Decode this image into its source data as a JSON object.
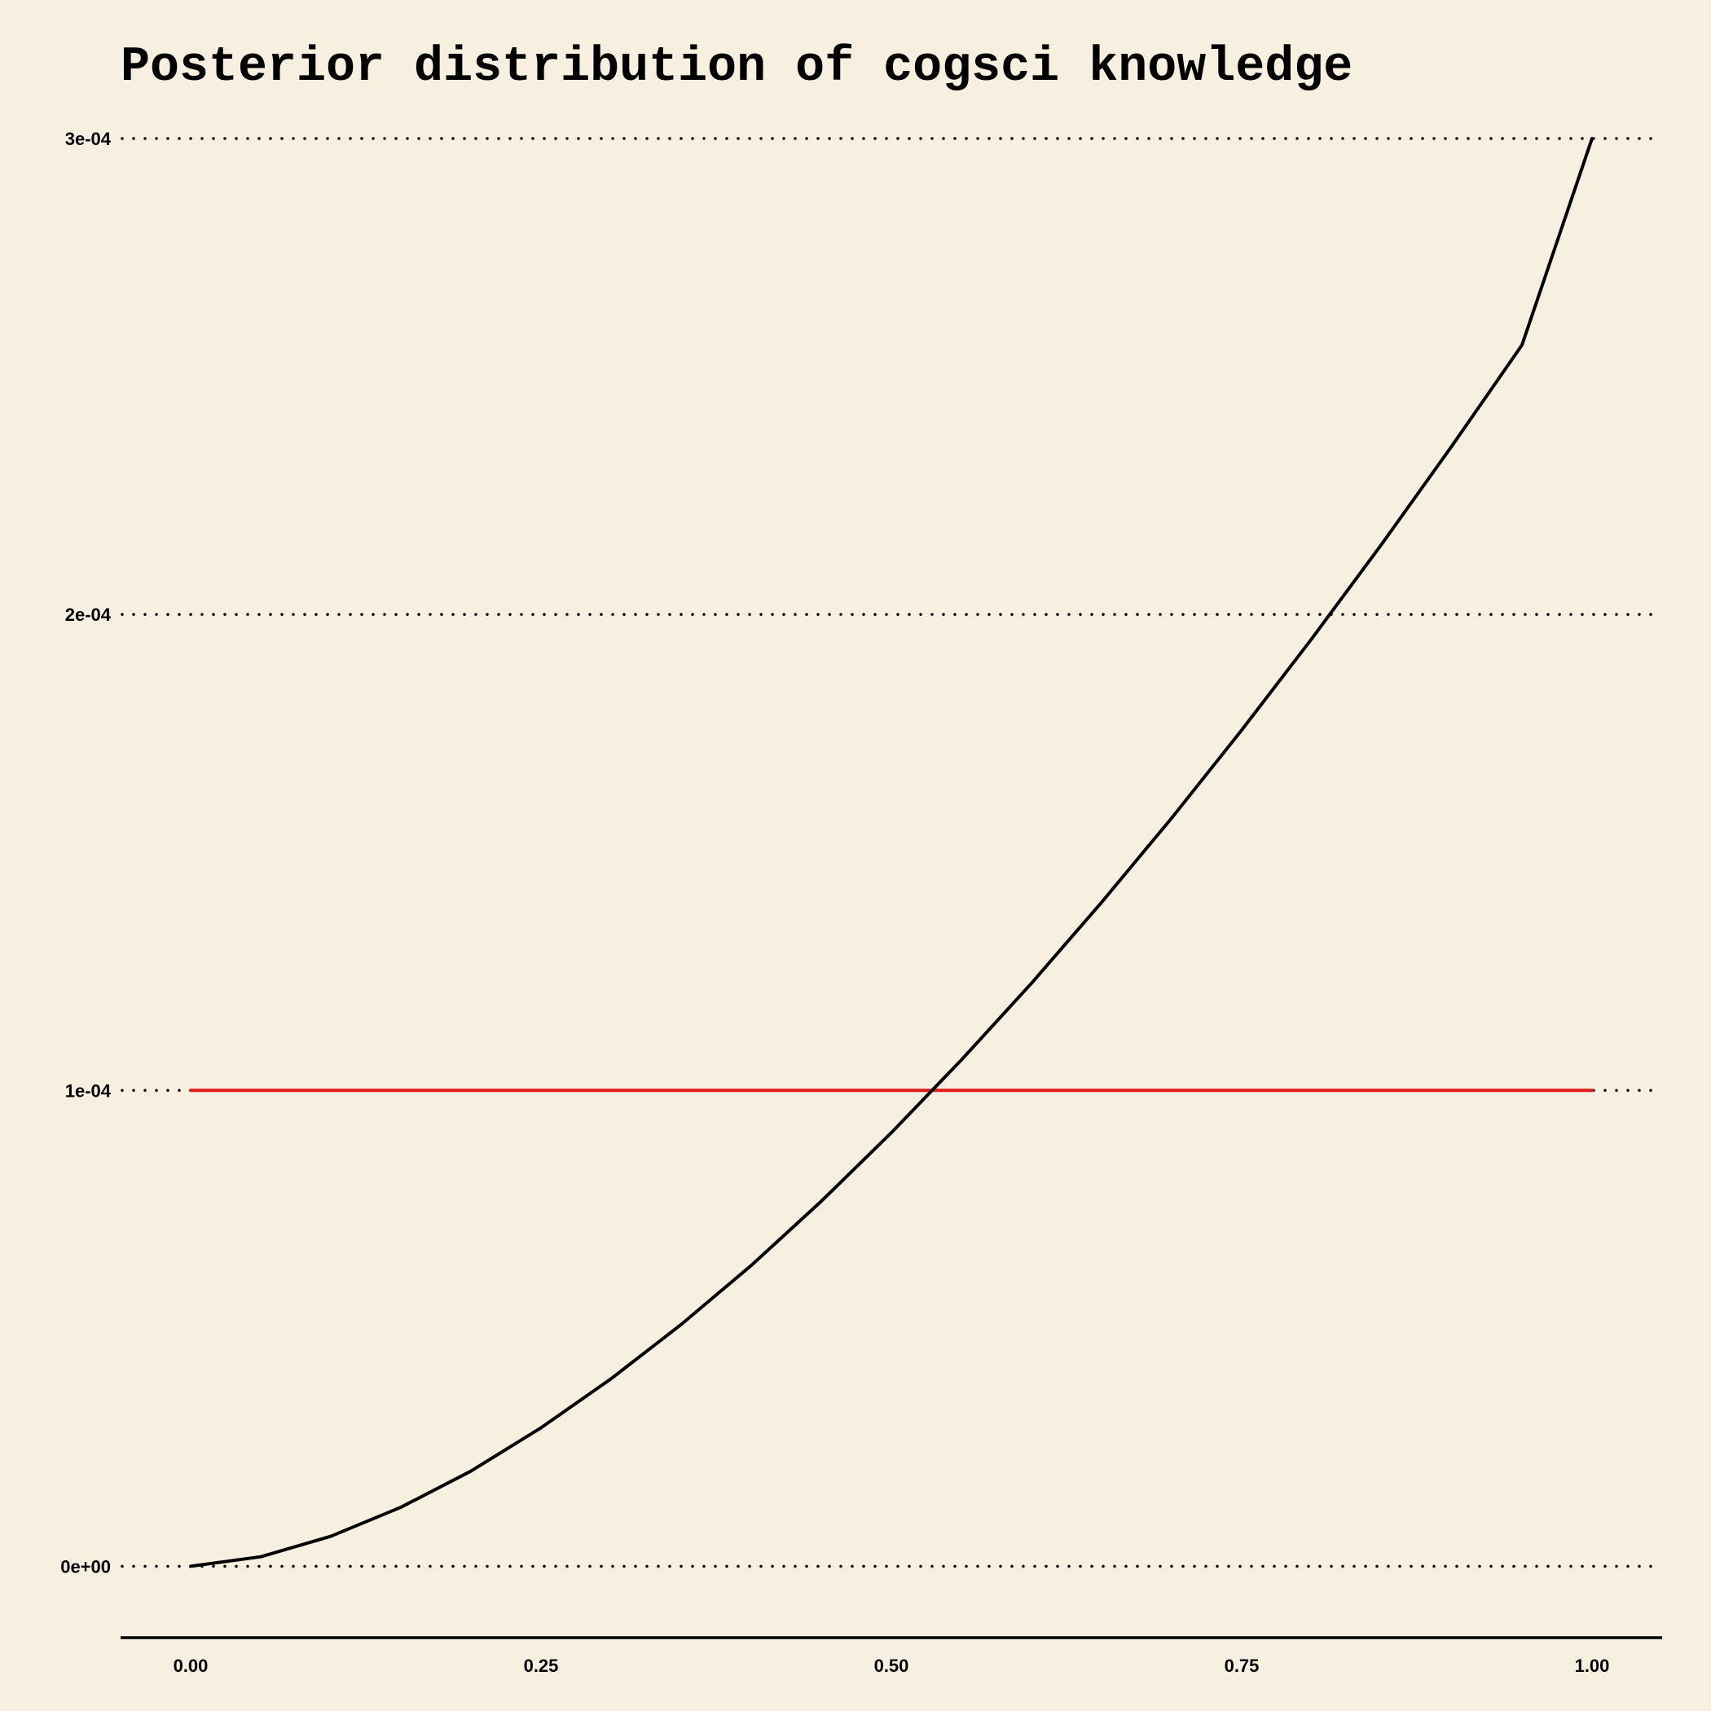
{
  "chart_data": {
    "type": "line",
    "title": "Posterior distribution of cogsci knowledge",
    "xlabel": "",
    "ylabel": "",
    "xlim": [
      -0.05,
      1.05
    ],
    "ylim": [
      -1.5e-05,
      0.0003
    ],
    "x_ticks": [
      0,
      0.25,
      0.5,
      0.75,
      1
    ],
    "x_tick_labels": [
      "0.00",
      "0.25",
      "0.50",
      "0.75",
      "1.00"
    ],
    "y_ticks": [
      0,
      0.0001,
      0.0002,
      0.0003
    ],
    "y_tick_labels": [
      "0e+00",
      "1e-04",
      "2e-04",
      "3e-04"
    ],
    "grid": "horizontal dotted",
    "series": [
      {
        "color": "#000000",
        "x": [
          0,
          0.05,
          0.1,
          0.15,
          0.2,
          0.25,
          0.3,
          0.35,
          0.4,
          0.45,
          0.5,
          0.55,
          0.6,
          0.65,
          0.7,
          0.75,
          0.8,
          0.85,
          0.9,
          0.95,
          1
        ],
        "y": [
          0,
          2e-06,
          6.3e-06,
          1.24e-05,
          2e-05,
          2.91e-05,
          3.94e-05,
          5.08e-05,
          6.32e-05,
          7.67e-05,
          9.11e-05,
          0.0001064,
          0.0001225,
          0.0001395,
          0.0001572,
          0.0001757,
          0.0001949,
          0.0002148,
          0.0002354,
          0.0002566,
          0.0003
        ]
      },
      {
        "color": "#e01b1b",
        "x": [
          0,
          1
        ],
        "y": [
          0.0001,
          0.0001
        ]
      }
    ]
  }
}
